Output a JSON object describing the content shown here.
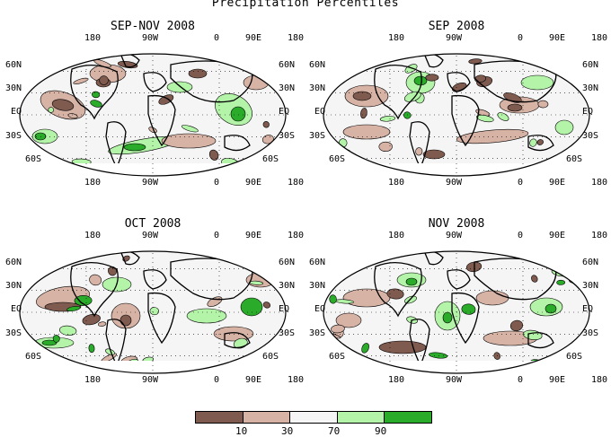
{
  "title": "Precipitation Percentiles",
  "panels": [
    {
      "id": "son",
      "title": "SEP-NOV 2008"
    },
    {
      "id": "sep",
      "title": "SEP 2008"
    },
    {
      "id": "oct",
      "title": "OCT 2008"
    },
    {
      "id": "nov",
      "title": "NOV 2008"
    }
  ],
  "lon_labels": [
    "180",
    "90W",
    "0",
    "90E",
    "180"
  ],
  "lat_labels": [
    "60N",
    "30N",
    "EQ",
    "30S",
    "60S"
  ],
  "legend": {
    "colors": [
      "#7f5a4f",
      "#d7b3a6",
      "#f5f5f5",
      "#b4f4a9",
      "#2aab2a"
    ],
    "ticks": [
      "10",
      "30",
      "70",
      "90"
    ]
  }
}
